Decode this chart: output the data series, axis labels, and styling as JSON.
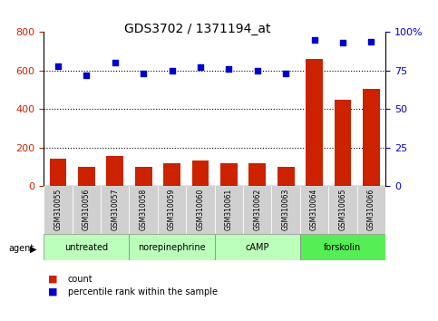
{
  "title": "GDS3702 / 1371194_at",
  "samples": [
    "GSM310055",
    "GSM310056",
    "GSM310057",
    "GSM310058",
    "GSM310059",
    "GSM310060",
    "GSM310061",
    "GSM310062",
    "GSM310063",
    "GSM310064",
    "GSM310065",
    "GSM310066"
  ],
  "counts": [
    145,
    100,
    155,
    100,
    120,
    135,
    120,
    120,
    100,
    660,
    450,
    505
  ],
  "percentiles": [
    78,
    72,
    80,
    73,
    75,
    77,
    76,
    75,
    73,
    95,
    93,
    94
  ],
  "count_ylim": [
    0,
    800
  ],
  "pct_ylim": [
    0,
    100
  ],
  "count_yticks": [
    0,
    200,
    400,
    600,
    800
  ],
  "pct_yticks": [
    0,
    25,
    50,
    75,
    100
  ],
  "pct_yticklabels": [
    "0",
    "25",
    "50",
    "75",
    "100%"
  ],
  "bar_color": "#cc2200",
  "dot_color": "#0000cc",
  "agents": [
    {
      "label": "untreated",
      "start": 0,
      "end": 3
    },
    {
      "label": "norepinephrine",
      "start": 3,
      "end": 6
    },
    {
      "label": "cAMP",
      "start": 6,
      "end": 9
    },
    {
      "label": "forskolin",
      "start": 9,
      "end": 12
    }
  ],
  "agent_colors": [
    "#aaffaa",
    "#ccffcc",
    "#aaffaa",
    "#66ff66"
  ],
  "grid_color": "#000000",
  "bg_color": "#ffffff",
  "plot_bg": "#ffffff",
  "tick_label_color_left": "#cc2200",
  "tick_label_color_right": "#0000cc",
  "xlabel_area_color": "#cccccc",
  "legend_items": [
    {
      "label": "count",
      "color": "#cc2200"
    },
    {
      "label": "percentile rank within the sample",
      "color": "#0000cc"
    }
  ]
}
